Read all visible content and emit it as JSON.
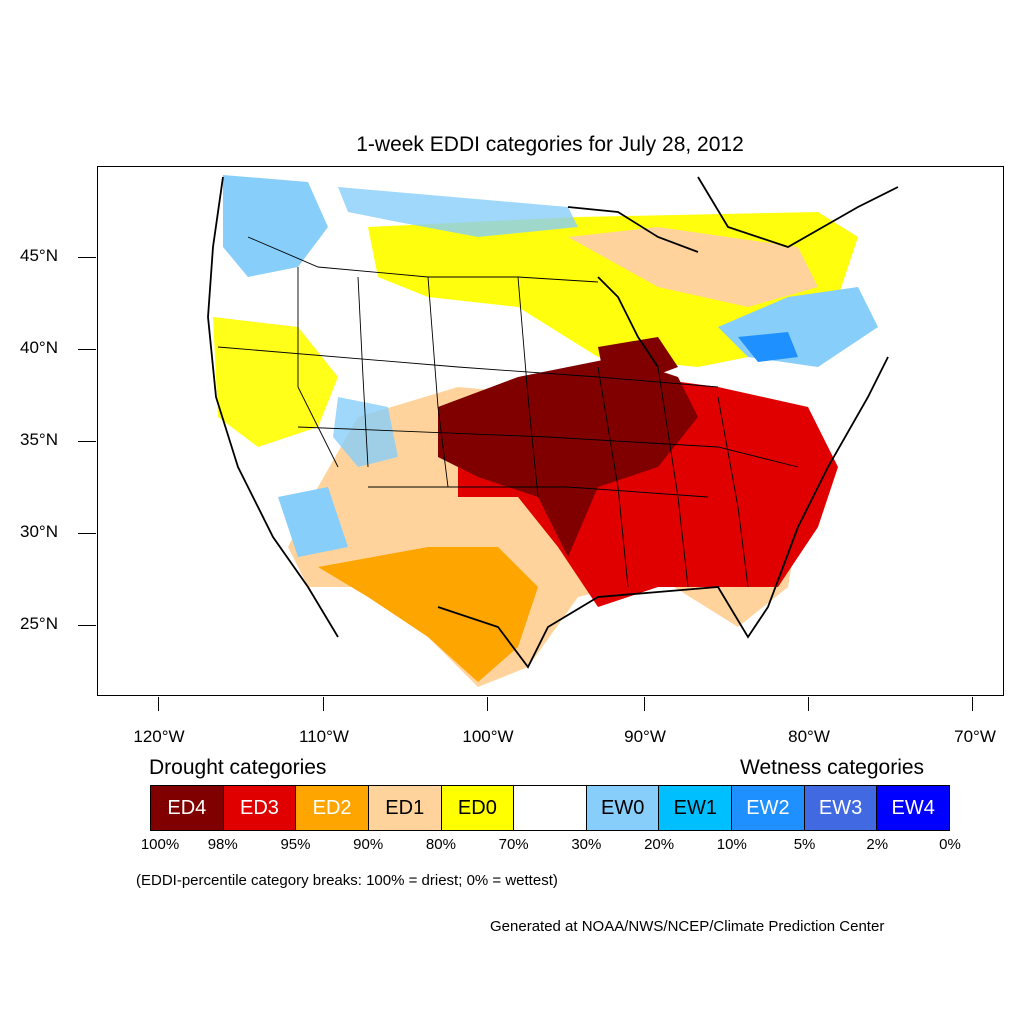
{
  "title": "1-week EDDI categories for July 28, 2012",
  "lat_labels": [
    "45°N",
    "40°N",
    "35°N",
    "30°N",
    "25°N"
  ],
  "lon_labels": [
    "120°W",
    "110°W",
    "100°W",
    "90°W",
    "80°W",
    "70°W"
  ],
  "legend": {
    "drought_heading": "Drought categories",
    "wetness_heading": "Wetness categories",
    "categories": [
      {
        "label": "ED4",
        "color": "#800000"
      },
      {
        "label": "ED3",
        "color": "#e00000"
      },
      {
        "label": "ED2",
        "color": "#ffa500"
      },
      {
        "label": "ED1",
        "color": "#ffd39b"
      },
      {
        "label": "ED0",
        "color": "#ffff00"
      },
      {
        "label": "",
        "color": "#ffffff"
      },
      {
        "label": "EW0",
        "color": "#87cefa"
      },
      {
        "label": "EW1",
        "color": "#00bfff"
      },
      {
        "label": "EW2",
        "color": "#1e90ff"
      },
      {
        "label": "EW3",
        "color": "#4169e1"
      },
      {
        "label": "EW4",
        "color": "#0000ff"
      }
    ],
    "percentiles": [
      "100%",
      "98%",
      "95%",
      "90%",
      "80%",
      "70%",
      "30%",
      "20%",
      "10%",
      "5%",
      "2%",
      "0%"
    ],
    "note": "(EDDI-percentile category breaks: 100% = driest; 0% = wettest)"
  },
  "credit": "Generated at NOAA/NWS/NCEP/Climate Prediction Center"
}
